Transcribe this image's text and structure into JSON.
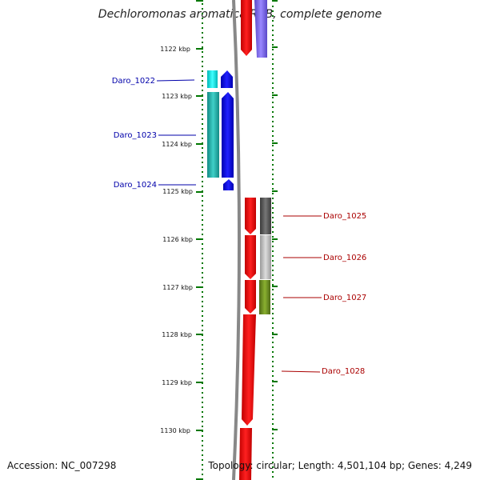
{
  "title": "Dechloromonas aromatica RCB, complete genome",
  "footer": {
    "accession": "Accession: NC_007298",
    "topology": "Topology: circular; Length: 4,501,104 bp; Genes: 4,249"
  },
  "ruler": {
    "labels": [
      "1122 kbp",
      "1123 kbp",
      "1124 kbp",
      "1125 kbp",
      "1126 kbp",
      "1127 kbp",
      "1128 kbp",
      "1129 kbp",
      "1130 kbp"
    ]
  },
  "genes": {
    "left_labels": [
      "Daro_1022",
      "Daro_1023",
      "Daro_1024"
    ],
    "right_labels": [
      "Daro_1025",
      "Daro_1026",
      "Daro_1027",
      "Daro_1028"
    ]
  },
  "colors": {
    "forward_strand": "#ee0000",
    "reverse_strand": "#0000ee",
    "cog_cyan": "#00dddd",
    "cog_teal": "#20b2aa",
    "cog_purple": "#7b68ee",
    "cog_darkgray": "#555555",
    "cog_lightgray": "#bbbbbb",
    "cog_olive": "#6b8e23",
    "tick_green": "#007700",
    "backbone_gray": "#888888"
  }
}
